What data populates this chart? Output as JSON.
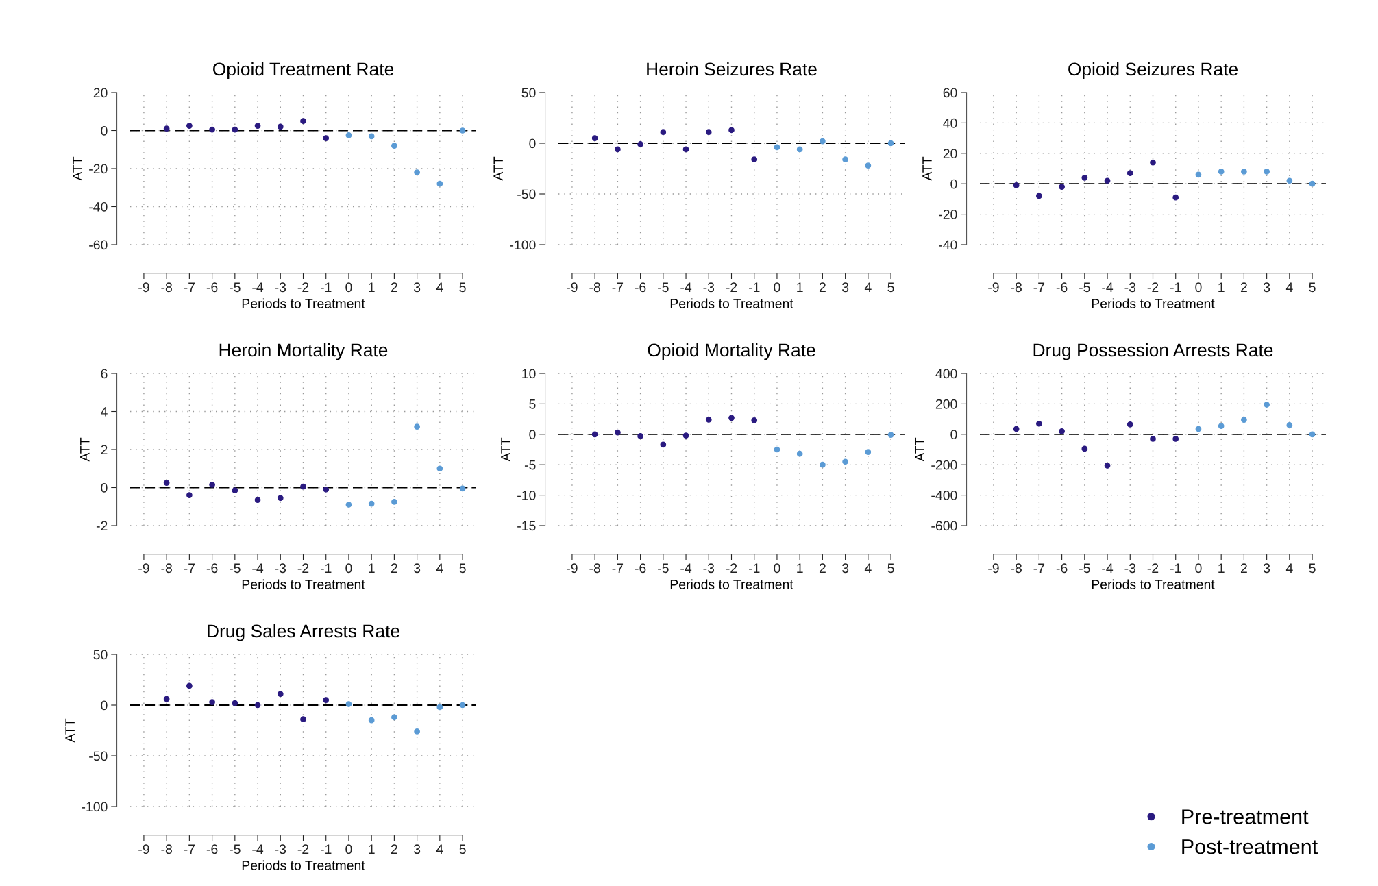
{
  "chart_data": [
    {
      "type": "scatter",
      "title": "Opioid Treatment Rate",
      "xlabel": "Periods to Treatment",
      "ylabel": "ATT",
      "xlim": [
        -9,
        5
      ],
      "xticks": [
        -9,
        -8,
        -7,
        -6,
        -5,
        -4,
        -3,
        -2,
        -1,
        0,
        1,
        2,
        3,
        4,
        5
      ],
      "ylim": [
        -60,
        20
      ],
      "yticks": [
        -60,
        -40,
        -20,
        0,
        20
      ],
      "grid": true,
      "marker": "circle",
      "legend": false,
      "ref_lines": [
        {
          "axis": "y",
          "value": 0,
          "color": "#000000",
          "line_style": "dashed"
        }
      ],
      "series": [
        {
          "color": "#2a1a80",
          "x": [
            -8,
            -7,
            -6,
            -5,
            -4,
            -3,
            -2,
            -1
          ],
          "values": [
            1,
            2.5,
            0.5,
            0.5,
            2.5,
            2,
            5,
            -4
          ]
        },
        {
          "color": "#5b9bd5",
          "x": [
            0,
            1,
            2,
            3,
            4,
            5
          ],
          "values": [
            -2.5,
            -3,
            -8,
            -22,
            -28,
            0
          ]
        }
      ]
    },
    {
      "type": "scatter",
      "title": "Heroin Seizures Rate",
      "xlabel": "Periods to Treatment",
      "ylabel": "ATT",
      "xlim": [
        -9,
        5
      ],
      "xticks": [
        -9,
        -8,
        -7,
        -6,
        -5,
        -4,
        -3,
        -2,
        -1,
        0,
        1,
        2,
        3,
        4,
        5
      ],
      "ylim": [
        -100,
        50
      ],
      "yticks": [
        -100,
        -50,
        0,
        50
      ],
      "grid": true,
      "marker": "circle",
      "legend": false,
      "ref_lines": [
        {
          "axis": "y",
          "value": 0,
          "color": "#000000",
          "line_style": "dashed"
        }
      ],
      "series": [
        {
          "color": "#2a1a80",
          "x": [
            -8,
            -7,
            -6,
            -5,
            -4,
            -3,
            -2,
            -1
          ],
          "values": [
            5,
            -6,
            -1,
            11,
            -6,
            11,
            13,
            -16
          ]
        },
        {
          "color": "#5b9bd5",
          "x": [
            0,
            1,
            2,
            3,
            4,
            5
          ],
          "values": [
            -4,
            -6,
            2,
            -16,
            -22,
            0
          ]
        }
      ]
    },
    {
      "type": "scatter",
      "title": "Opioid Seizures Rate",
      "xlabel": "Periods to Treatment",
      "ylabel": "ATT",
      "xlim": [
        -9,
        5
      ],
      "xticks": [
        -9,
        -8,
        -7,
        -6,
        -5,
        -4,
        -3,
        -2,
        -1,
        0,
        1,
        2,
        3,
        4,
        5
      ],
      "ylim": [
        -40,
        60
      ],
      "yticks": [
        -40,
        -20,
        0,
        20,
        40,
        60
      ],
      "grid": true,
      "marker": "circle",
      "legend": false,
      "ref_lines": [
        {
          "axis": "y",
          "value": 0,
          "color": "#000000",
          "line_style": "dashed"
        }
      ],
      "series": [
        {
          "color": "#2a1a80",
          "x": [
            -8,
            -7,
            -6,
            -5,
            -4,
            -3,
            -2,
            -1
          ],
          "values": [
            -1,
            -8,
            -2,
            4,
            2,
            7,
            14,
            -9
          ]
        },
        {
          "color": "#5b9bd5",
          "x": [
            0,
            1,
            2,
            3,
            4,
            5
          ],
          "values": [
            6,
            8,
            8,
            8,
            2,
            0
          ]
        }
      ]
    },
    {
      "type": "scatter",
      "title": "Heroin Mortality Rate",
      "xlabel": "Periods to Treatment",
      "ylabel": "ATT",
      "xlim": [
        -9,
        5
      ],
      "xticks": [
        -9,
        -8,
        -7,
        -6,
        -5,
        -4,
        -3,
        -2,
        -1,
        0,
        1,
        2,
        3,
        4,
        5
      ],
      "ylim": [
        -2,
        6
      ],
      "yticks": [
        -2,
        0,
        2,
        4,
        6
      ],
      "grid": true,
      "marker": "circle",
      "legend": false,
      "ref_lines": [
        {
          "axis": "y",
          "value": 0,
          "color": "#000000",
          "line_style": "dashed"
        }
      ],
      "series": [
        {
          "color": "#2a1a80",
          "x": [
            -8,
            -7,
            -6,
            -5,
            -4,
            -3,
            -2,
            -1
          ],
          "values": [
            0.25,
            -0.4,
            0.15,
            -0.15,
            -0.65,
            -0.55,
            0.05,
            -0.1
          ]
        },
        {
          "color": "#5b9bd5",
          "x": [
            0,
            1,
            2,
            3,
            4,
            5
          ],
          "values": [
            -0.9,
            -0.85,
            -0.75,
            3.2,
            1.0,
            -0.05
          ]
        }
      ]
    },
    {
      "type": "scatter",
      "title": "Opioid Mortality Rate",
      "xlabel": "Periods to Treatment",
      "ylabel": "ATT",
      "xlim": [
        -9,
        5
      ],
      "xticks": [
        -9,
        -8,
        -7,
        -6,
        -5,
        -4,
        -3,
        -2,
        -1,
        0,
        1,
        2,
        3,
        4,
        5
      ],
      "ylim": [
        -15,
        10
      ],
      "yticks": [
        -15,
        -10,
        -5,
        0,
        5,
        10
      ],
      "grid": true,
      "marker": "circle",
      "legend": false,
      "ref_lines": [
        {
          "axis": "y",
          "value": 0,
          "color": "#000000",
          "line_style": "dashed"
        }
      ],
      "series": [
        {
          "color": "#2a1a80",
          "x": [
            -8,
            -7,
            -6,
            -5,
            -4,
            -3,
            -2,
            -1
          ],
          "values": [
            0,
            0.3,
            -0.3,
            -1.7,
            -0.2,
            2.4,
            2.7,
            2.3
          ]
        },
        {
          "color": "#5b9bd5",
          "x": [
            0,
            1,
            2,
            3,
            4,
            5
          ],
          "values": [
            -2.5,
            -3.2,
            -5,
            -4.5,
            -2.9,
            -0.1
          ]
        }
      ]
    },
    {
      "type": "scatter",
      "title": "Drug Possession Arrests Rate",
      "xlabel": "Periods to Treatment",
      "ylabel": "ATT",
      "xlim": [
        -9,
        5
      ],
      "xticks": [
        -9,
        -8,
        -7,
        -6,
        -5,
        -4,
        -3,
        -2,
        -1,
        0,
        1,
        2,
        3,
        4,
        5
      ],
      "ylim": [
        -600,
        400
      ],
      "yticks": [
        -600,
        -400,
        -200,
        0,
        200,
        400
      ],
      "grid": true,
      "marker": "circle",
      "legend": false,
      "ref_lines": [
        {
          "axis": "y",
          "value": 0,
          "color": "#000000",
          "line_style": "dashed"
        }
      ],
      "series": [
        {
          "color": "#2a1a80",
          "x": [
            -8,
            -7,
            -6,
            -5,
            -4,
            -3,
            -2,
            -1
          ],
          "values": [
            35,
            70,
            20,
            -95,
            -205,
            65,
            -30,
            -30
          ]
        },
        {
          "color": "#5b9bd5",
          "x": [
            0,
            1,
            2,
            3,
            4,
            5
          ],
          "values": [
            35,
            55,
            95,
            195,
            60,
            0
          ]
        }
      ]
    },
    {
      "type": "scatter",
      "title": "Drug Sales Arrests Rate",
      "xlabel": "Periods to Treatment",
      "ylabel": "ATT",
      "xlim": [
        -9,
        5
      ],
      "xticks": [
        -9,
        -8,
        -7,
        -6,
        -5,
        -4,
        -3,
        -2,
        -1,
        0,
        1,
        2,
        3,
        4,
        5
      ],
      "ylim": [
        -100,
        50
      ],
      "yticks": [
        -100,
        -50,
        0,
        50
      ],
      "grid": true,
      "marker": "circle",
      "legend": "bottom right",
      "ref_lines": [
        {
          "axis": "y",
          "value": 0,
          "color": "#000000",
          "line_style": "dashed"
        }
      ],
      "series": [
        {
          "name": "Pre-treatment",
          "color": "#2a1a80",
          "x": [
            -8,
            -7,
            -6,
            -5,
            -4,
            -3,
            -2,
            -1
          ],
          "values": [
            6,
            19,
            3,
            2,
            0,
            11,
            -14,
            5
          ]
        },
        {
          "name": "Post-treatment",
          "color": "#5b9bd5",
          "x": [
            0,
            1,
            2,
            3,
            4,
            5
          ],
          "values": [
            1,
            -15,
            -12,
            -26,
            -2,
            0
          ]
        }
      ]
    }
  ]
}
